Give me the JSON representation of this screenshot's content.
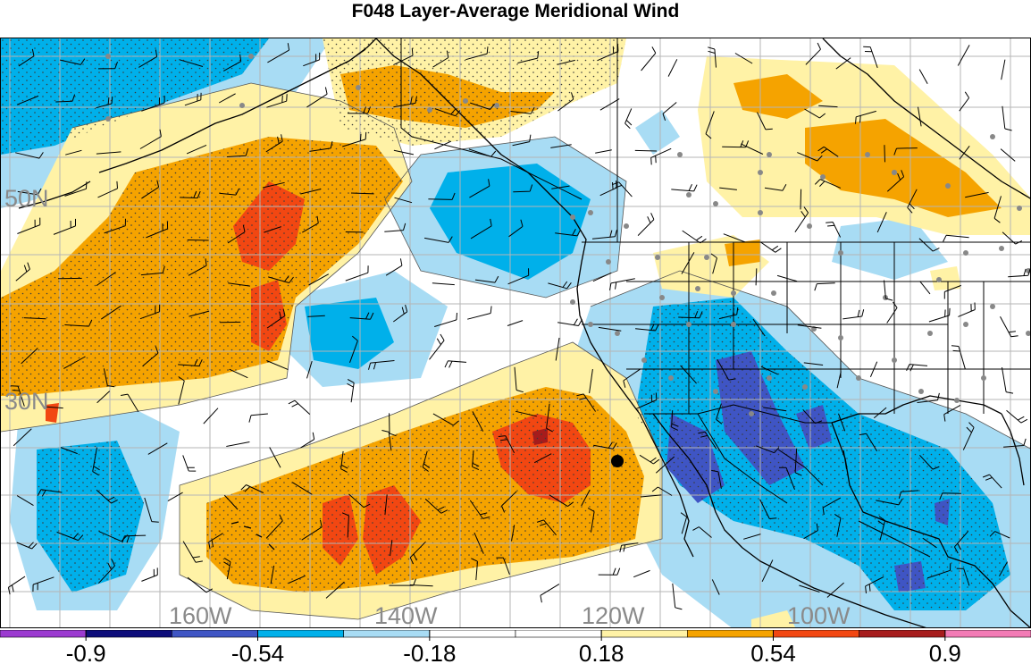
{
  "title": "F048 Layer-Average Meridional Wind",
  "map": {
    "lat_labels": [
      "50N",
      "30N"
    ],
    "lon_labels": [
      "160W",
      "140W",
      "120W",
      "100W"
    ],
    "label_color": "#8a8a8a",
    "grid_color": "#b5b5b5",
    "coast_color": "#000000"
  },
  "colorbar": {
    "colors": [
      "#9b3ad0",
      "#0d0d7a",
      "#3f55c4",
      "#00b0ea",
      "#a8dcf4",
      "#ffffff",
      "#ffffff",
      "#fff2a6",
      "#f5a300",
      "#f24712",
      "#a61c1c",
      "#f27bb5"
    ],
    "tick_labels": [
      "-0.9",
      "-0.54",
      "-0.18",
      "0.18",
      "0.54",
      "0.9"
    ]
  }
}
